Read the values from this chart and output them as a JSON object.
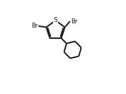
{
  "bg_color": "#ffffff",
  "bond_color": "#1a1a1a",
  "bond_lw": 1.4,
  "atom_S_label": "S",
  "atom_Br1_label": "Br",
  "atom_Br2_label": "Br",
  "font_size_S": 6.5,
  "font_size_Br": 6.0,
  "figsize": [
    1.78,
    1.33
  ],
  "dpi": 100,
  "xlim": [
    0,
    10
  ],
  "ylim": [
    0,
    10
  ]
}
